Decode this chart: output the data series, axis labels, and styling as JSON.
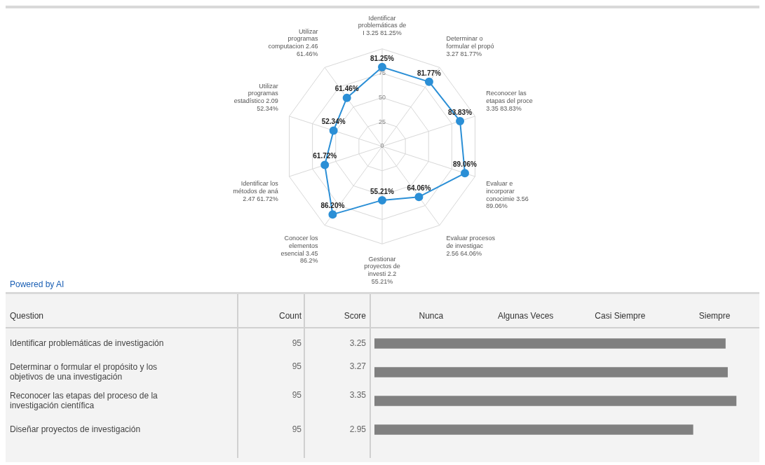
{
  "chart_data": [
    {
      "type": "radar",
      "categories": [
        "Identificar problemáticas de I 3.25 81.25%",
        "Determinar o formular el propó 3.27 81.77%",
        "Reconocer las etapas del proce 3.35 83.83%",
        "Evaluar e incorporar conocimie 3.56 89.06%",
        "Evaluar procesos de investigac 2.56 64.06%",
        "Gestionar proyectos de investi 2.2 55.21%",
        "Conocer los elementos esencial 3.45 86.2%",
        "Identificar los métodos de aná 2.47 61.72%",
        "Utilizar programas estadístico 2.09 52.34%",
        "Utilizar programas computacion 2.46 61.46%"
      ],
      "series": [
        {
          "color": "#2b8fd6",
          "values": [
            81.25,
            81.77,
            83.83,
            89.06,
            64.06,
            55.21,
            86.2,
            61.72,
            52.34,
            61.46
          ],
          "value_labels": [
            "81.25%",
            "81.77%",
            "83.83%",
            "89.06%",
            "64.06%",
            "55.21%",
            "86.20%",
            "61.72%",
            "52.34%",
            "61.46%"
          ]
        }
      ],
      "ylim": [
        0,
        100
      ],
      "yticks": [
        0,
        25,
        50,
        75
      ],
      "grid": true,
      "marker": "circle",
      "legend": false,
      "annotations": [
        "Powered by AI"
      ]
    },
    {
      "type": "bar",
      "orientation": "horizontal",
      "ylabel": "Question",
      "categories": [
        "Identificar problemáticas de investigación",
        "Determinar o formular el propósito y los objetivos de una investigación",
        "Reconocer las etapas del proceso de la investigación científica",
        "Diseñar proyectos de investigación"
      ],
      "values": [
        3.25,
        3.27,
        3.35,
        2.95
      ],
      "color": "#808080",
      "data_labels": true,
      "tick_labels": "y",
      "legend": false,
      "annotations": [
        "Count",
        "Score",
        "95",
        "95",
        "95",
        "95",
        "Nunca",
        "Algunas Veces",
        "Casi Siempre",
        "Siempre"
      ]
    }
  ]
}
